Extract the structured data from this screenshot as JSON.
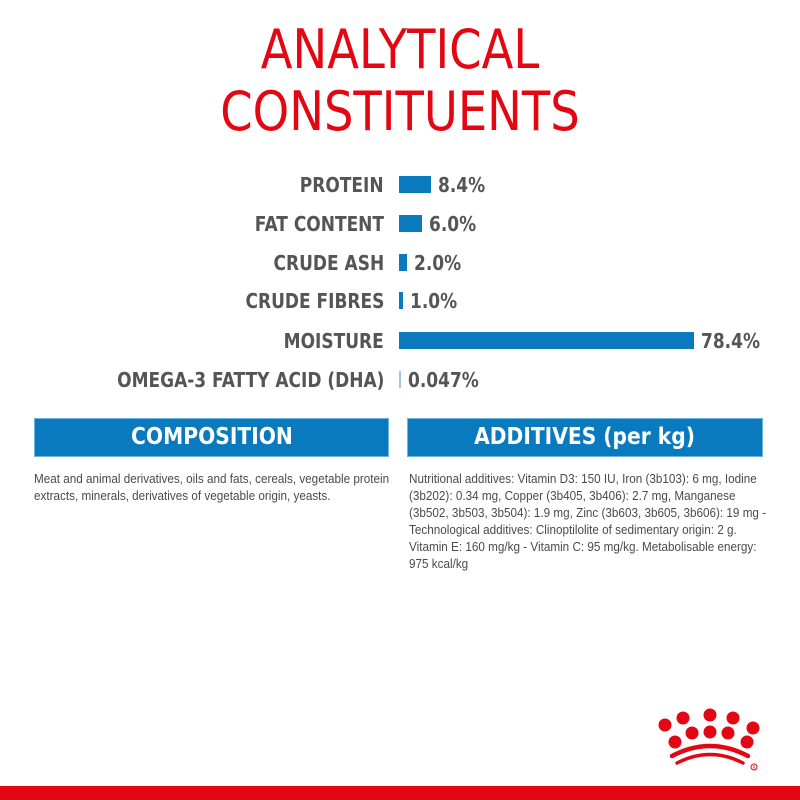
{
  "header": {
    "title_line1": "ANALYTICAL",
    "title_line2": "CONSTITUENTS"
  },
  "chart_data": {
    "type": "bar",
    "orientation": "horizontal",
    "title": "ANALYTICAL CONSTITUENTS",
    "categories": [
      "PROTEIN",
      "FAT CONTENT",
      "CRUDE ASH",
      "CRUDE FIBRES",
      "MOISTURE",
      "OMEGA-3 FATTY ACID (DHA)"
    ],
    "values": [
      8.4,
      6.0,
      2.0,
      1.0,
      78.4,
      0.047
    ],
    "value_labels": [
      "8.4%",
      "6.0%",
      "2.0%",
      "1.0%",
      "78.4%",
      "0.047%"
    ],
    "unit": "%",
    "xlabel": "",
    "ylabel": "",
    "grid": false,
    "legend": null,
    "bar_color": "#0a7abf"
  },
  "composition": {
    "heading": "COMPOSITION",
    "text": "Meat and animal derivatives, oils and fats, cereals, vegetable protein extracts, minerals, derivatives of vegetable origin, yeasts."
  },
  "additives": {
    "heading": "ADDITIVES (per kg)",
    "text": "Nutritional additives: Vitamin D3: 150 IU, Iron (3b103): 6 mg, Iodine (3b202): 0.34 mg, Copper (3b405, 3b406): 2.7 mg, Manganese (3b502, 3b503, 3b504): 1.9 mg, Zinc (3b603, 3b605, 3b606): 19 mg - Technological additives: Clinoptilolite of sedimentary origin: 2 g. Vitamin E: 160 mg/kg - Vitamin C: 95 mg/kg. Metabolisable energy: 975 kcal/kg"
  },
  "brand": {
    "logo_icon": "crown-icon",
    "registered_mark": "®"
  },
  "colors": {
    "title_red": "#e30613",
    "bar_blue": "#0a7abf",
    "label_gray": "#555555",
    "footer_red": "#e30613"
  }
}
